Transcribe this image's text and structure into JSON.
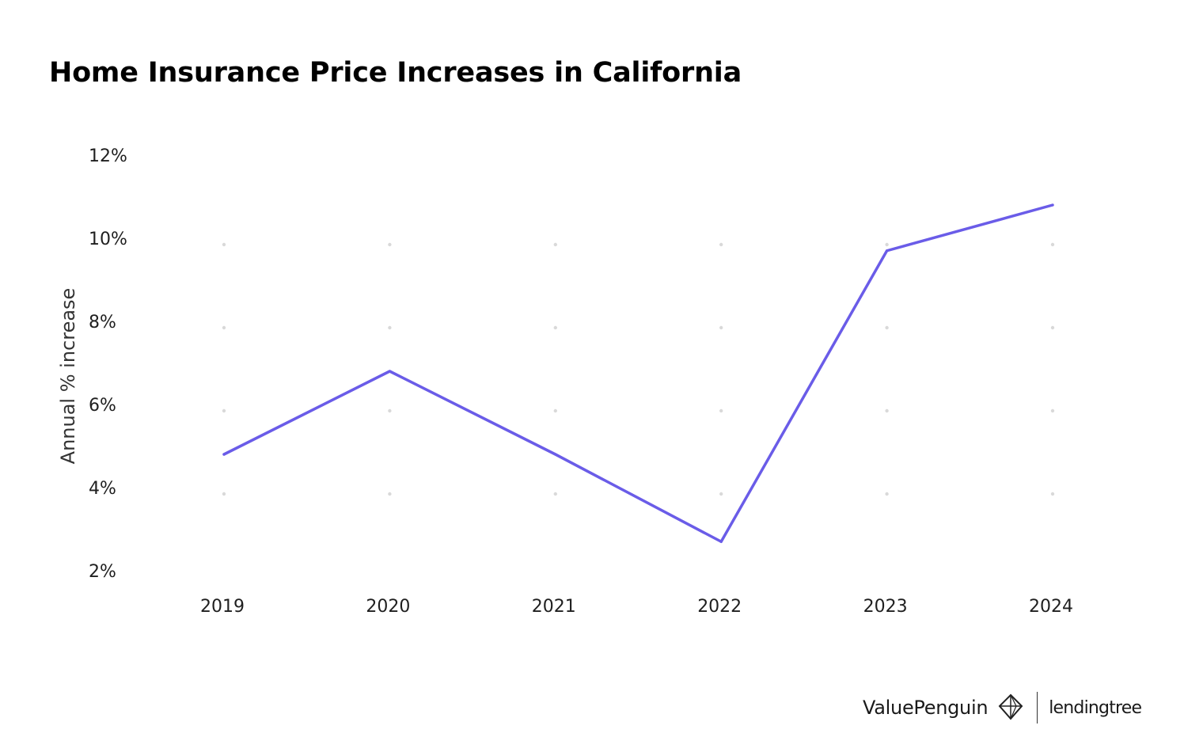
{
  "title": "Home Insurance Price Increases in California",
  "chart_data": {
    "type": "line",
    "title": "Home Insurance Price Increases in California",
    "xlabel": "",
    "ylabel": "Annual % increase",
    "categories": [
      "2019",
      "2020",
      "2021",
      "2022",
      "2023",
      "2024"
    ],
    "series": [
      {
        "values": [
          4.8,
          6.8,
          4.8,
          2.7,
          9.7,
          10.8
        ]
      }
    ],
    "ylim": [
      2,
      12
    ],
    "yticks": [
      2,
      4,
      6,
      8,
      10,
      12
    ],
    "ytick_labels": [
      "2%",
      "4%",
      "6%",
      "8%",
      "10%",
      "12%"
    ],
    "grid": "dotted",
    "line_color": "#6a5ce8",
    "grid_color": "#d9d9d9"
  },
  "branding": {
    "valuepenguin": "ValuePenguin",
    "lendingtree": "lendingtree",
    "logo_icon": "valuepenguin-logo-icon"
  }
}
